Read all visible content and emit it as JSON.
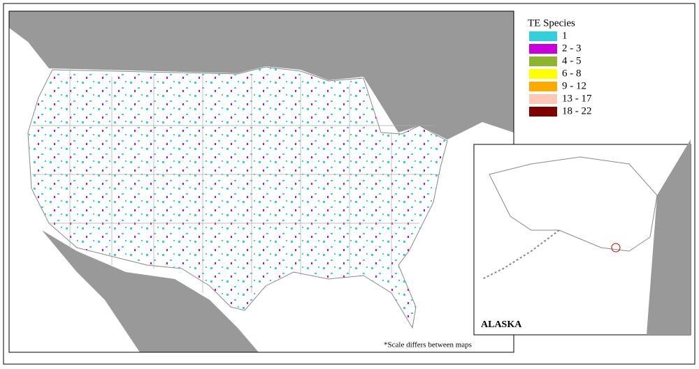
{
  "legend": {
    "title": "TE Species",
    "items": [
      {
        "label": "1",
        "color": "#33cfdc"
      },
      {
        "label": "2 - 3",
        "color": "#c800dc"
      },
      {
        "label": "4 - 5",
        "color": "#8cb42d"
      },
      {
        "label": "6 - 8",
        "color": "#ffff00"
      },
      {
        "label": "9 - 12",
        "color": "#ffaa00"
      },
      {
        "label": "13 - 17",
        "color": "#ffc8b4"
      },
      {
        "label": "18 - 22",
        "color": "#800000"
      }
    ]
  },
  "inset": {
    "label": "ALASKA"
  },
  "footnote": "*Scale differs between maps"
}
